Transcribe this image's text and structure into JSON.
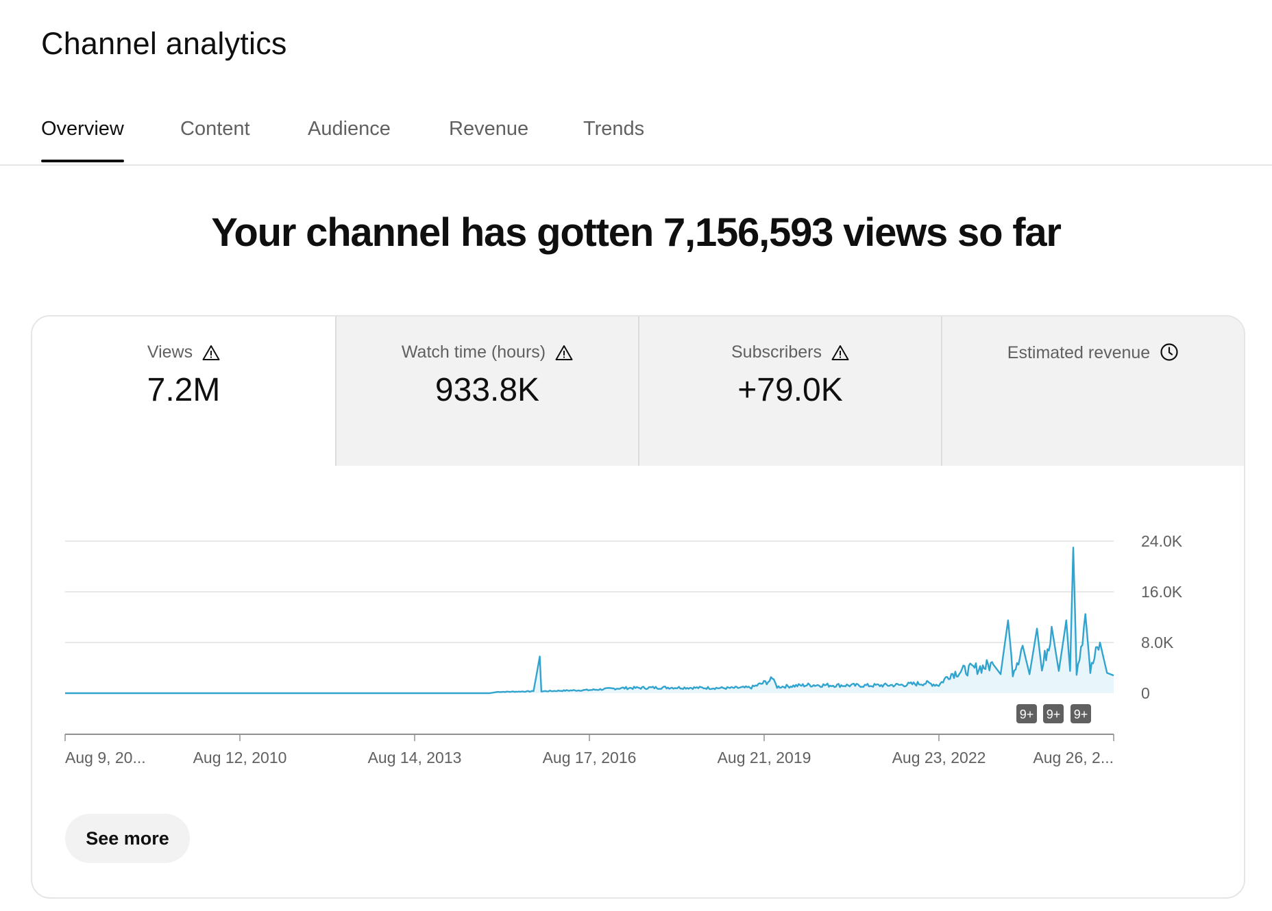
{
  "header": {
    "title": "Channel analytics"
  },
  "tabs": [
    {
      "label": "Overview",
      "active": true
    },
    {
      "label": "Content"
    },
    {
      "label": "Audience"
    },
    {
      "label": "Revenue"
    },
    {
      "label": "Trends"
    }
  ],
  "headline": "Your channel has gotten 7,156,593 views so far",
  "metrics": [
    {
      "label": "Views",
      "value": "7.2M",
      "icon": "warning-icon",
      "selected": true
    },
    {
      "label": "Watch time (hours)",
      "value": "933.8K",
      "icon": "warning-icon"
    },
    {
      "label": "Subscribers",
      "value": "+79.0K",
      "icon": "warning-icon"
    },
    {
      "label": "Estimated revenue",
      "value": "",
      "icon": "clock-icon"
    }
  ],
  "chart_data": {
    "type": "area",
    "series_color": "#30a3cf",
    "fill_color": "#e8f5fa",
    "grid": true,
    "ylim": [
      0,
      24000
    ],
    "yticks": [
      0,
      8000,
      16000,
      24000
    ],
    "ytick_labels": [
      "0",
      "8.0K",
      "16.0K",
      "24.0K"
    ],
    "xtick_labels": [
      "Aug 9, 20...",
      "Aug 12, 2010",
      "Aug 14, 2013",
      "Aug 17, 2016",
      "Aug 21, 2019",
      "Aug 23, 2022",
      "Aug 26, 2..."
    ],
    "badges": [
      "9+",
      "9+",
      "9+"
    ],
    "x_range": [
      "2007-08-09",
      "2025-08-26"
    ],
    "points": [
      [
        "2007-08-09",
        0
      ],
      [
        "2014-12-01",
        0
      ],
      [
        "2015-01-15",
        200
      ],
      [
        "2015-06-01",
        250
      ],
      [
        "2015-09-01",
        300
      ],
      [
        "2015-10-10",
        5800
      ],
      [
        "2015-10-20",
        300
      ],
      [
        "2016-03-01",
        400
      ],
      [
        "2016-08-17",
        500
      ],
      [
        "2017-03-01",
        800
      ],
      [
        "2018-01-01",
        900
      ],
      [
        "2019-01-01",
        800
      ],
      [
        "2019-06-01",
        900
      ],
      [
        "2019-10-20",
        2200
      ],
      [
        "2019-11-10",
        1000
      ],
      [
        "2020-06-01",
        1300
      ],
      [
        "2021-06-01",
        1200
      ],
      [
        "2022-01-01",
        1300
      ],
      [
        "2022-06-01",
        1600
      ],
      [
        "2022-08-23",
        1300
      ],
      [
        "2022-11-01",
        3000
      ],
      [
        "2023-02-01",
        3600
      ],
      [
        "2023-05-01",
        4000
      ],
      [
        "2023-08-01",
        4500
      ],
      [
        "2023-09-15",
        3000
      ],
      [
        "2023-11-01",
        11500
      ],
      [
        "2023-12-01",
        3500
      ],
      [
        "2024-02-01",
        7500
      ],
      [
        "2024-03-15",
        3000
      ],
      [
        "2024-05-01",
        10200
      ],
      [
        "2024-06-01",
        3500
      ],
      [
        "2024-08-01",
        10500
      ],
      [
        "2024-09-15",
        3500
      ],
      [
        "2024-11-01",
        11500
      ],
      [
        "2024-11-25",
        3500
      ],
      [
        "2024-12-15",
        23000
      ],
      [
        "2025-01-05",
        3500
      ],
      [
        "2025-03-01",
        12500
      ],
      [
        "2025-04-01",
        3500
      ],
      [
        "2025-06-01",
        8000
      ],
      [
        "2025-07-15",
        3200
      ],
      [
        "2025-08-26",
        2800
      ]
    ]
  },
  "actions": {
    "see_more_label": "See more"
  }
}
